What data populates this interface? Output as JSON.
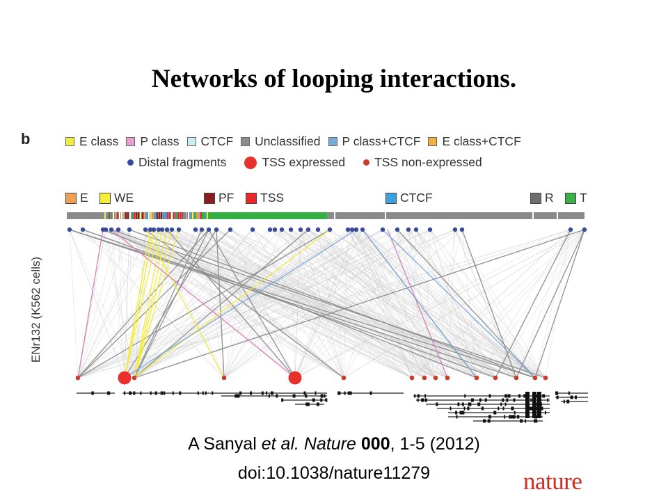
{
  "slide": {
    "title": "Networks of looping interactions."
  },
  "figure": {
    "panel_label": "b",
    "legend_classes": [
      {
        "label": "E class",
        "color": "#f2ec3a"
      },
      {
        "label": "P class",
        "color": "#e6a1d1"
      },
      {
        "label": "CTCF",
        "color": "#c8eef0"
      },
      {
        "label": "Unclassified",
        "color": "#8c8c8c"
      },
      {
        "label": "P class+CTCF",
        "color": "#7aa8d8"
      },
      {
        "label": "E class+CTCF",
        "color": "#f2b040"
      }
    ],
    "legend_nodes": [
      {
        "label": "Distal fragments",
        "color": "#3a4a9a",
        "size": "small"
      },
      {
        "label": "TSS expressed",
        "color": "#e8312a",
        "size": "large"
      },
      {
        "label": "TSS non-expressed",
        "color": "#cc3a28",
        "size": "small"
      }
    ],
    "track_legend": [
      {
        "label": "E",
        "color": "#f0a050"
      },
      {
        "label": "WE",
        "color": "#f2ee3a"
      },
      {
        "label": "PF",
        "color": "#8a1d22"
      },
      {
        "label": "TSS",
        "color": "#e8282a"
      },
      {
        "label": "CTCF",
        "color": "#3aa0e0"
      },
      {
        "label": "R",
        "color": "#6e6e6e"
      },
      {
        "label": "T",
        "color": "#3ab04a"
      }
    ],
    "y_axis_label": "ENr132 (K562 cells)"
  },
  "citation": {
    "line1_authors": "A Sanyal ",
    "line1_etal": "et al. ",
    "line1_journal": "Nature",
    "line1_volume": " 000",
    "line1_pages": ", 1-5 (2012)",
    "line2": "doi:10.1038/nature11279"
  },
  "logo": {
    "text": "nature"
  }
}
